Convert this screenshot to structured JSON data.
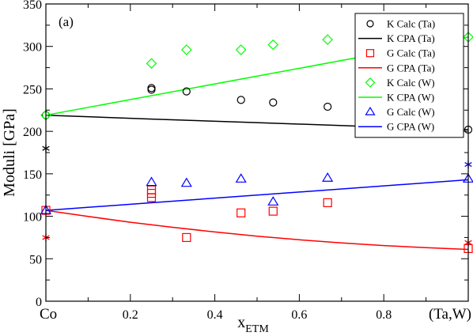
{
  "chart_data": {
    "type": "scatter",
    "panel_label": "(a)",
    "xlabel_main": "x",
    "xlabel_sub": "ETM",
    "ylabel": "Moduli  [GPa]",
    "xlim": [
      0,
      1
    ],
    "ylim": [
      0,
      350
    ],
    "x_ticks": [
      {
        "value": 0,
        "label": "Co"
      },
      {
        "value": 0.2,
        "label": "0.2"
      },
      {
        "value": 0.4,
        "label": "0.4"
      },
      {
        "value": 0.6,
        "label": "0.6"
      },
      {
        "value": 0.8,
        "label": "0.8"
      },
      {
        "value": 1.0,
        "label": "(Ta,W)"
      }
    ],
    "y_ticks": [
      0,
      50,
      100,
      150,
      200,
      250,
      300,
      350
    ],
    "legend_position": "top-right",
    "series": [
      {
        "name": "K Calc (Ta)",
        "kind": "marker",
        "marker": "circle",
        "color": "#000000",
        "points": [
          [
            0,
            219
          ],
          [
            0.25,
            249
          ],
          [
            0.25,
            251
          ],
          [
            0.333,
            247
          ],
          [
            0.462,
            237
          ],
          [
            0.538,
            234
          ],
          [
            0.667,
            229
          ],
          [
            1.0,
            202
          ]
        ]
      },
      {
        "name": "K CPA (Ta)",
        "kind": "line",
        "color": "#000000",
        "points": [
          [
            0,
            219
          ],
          [
            0.25,
            214.5
          ],
          [
            0.5,
            210.3
          ],
          [
            0.75,
            206
          ],
          [
            1.0,
            202
          ]
        ]
      },
      {
        "name": "G Calc (Ta)",
        "kind": "marker",
        "marker": "square",
        "color": "#ff0000",
        "points": [
          [
            0,
            107
          ],
          [
            0.25,
            122
          ],
          [
            0.25,
            127
          ],
          [
            0.25,
            131
          ],
          [
            0.333,
            75
          ],
          [
            0.462,
            104
          ],
          [
            0.538,
            106
          ],
          [
            0.667,
            116
          ],
          [
            1.0,
            62
          ]
        ]
      },
      {
        "name": "G CPA (Ta)",
        "kind": "line",
        "color": "#ff0000",
        "points": [
          [
            0,
            107
          ],
          [
            0.1,
            99.8
          ],
          [
            0.2,
            93
          ],
          [
            0.3,
            87
          ],
          [
            0.4,
            81.5
          ],
          [
            0.5,
            76.6
          ],
          [
            0.6,
            72.3
          ],
          [
            0.7,
            68.6
          ],
          [
            0.8,
            65.5
          ],
          [
            0.9,
            63
          ],
          [
            1.0,
            61
          ]
        ]
      },
      {
        "name": "K Calc (W)",
        "kind": "marker",
        "marker": "diamond",
        "color": "#00ff00",
        "points": [
          [
            0,
            219
          ],
          [
            0.25,
            280
          ],
          [
            0.333,
            296
          ],
          [
            0.462,
            296
          ],
          [
            0.538,
            302
          ],
          [
            0.667,
            308
          ],
          [
            1.0,
            311
          ]
        ]
      },
      {
        "name": "K CPA (W)",
        "kind": "line",
        "color": "#00ff00",
        "points": [
          [
            0,
            219
          ],
          [
            1.0,
            311
          ]
        ]
      },
      {
        "name": "G Calc (W)",
        "kind": "marker",
        "marker": "triangle",
        "color": "#0000ff",
        "points": [
          [
            0,
            107
          ],
          [
            0.25,
            140
          ],
          [
            0.333,
            139
          ],
          [
            0.462,
            144
          ],
          [
            0.538,
            117
          ],
          [
            0.667,
            145
          ],
          [
            1.0,
            144
          ]
        ]
      },
      {
        "name": "G CPA (W)",
        "kind": "line",
        "color": "#0000ff",
        "points": [
          [
            0,
            107
          ],
          [
            1.0,
            143
          ]
        ]
      }
    ],
    "star_markers": [
      {
        "x": 0,
        "y": 180,
        "color": "#000000"
      },
      {
        "x": 0,
        "y": 75,
        "color": "#ff0000"
      },
      {
        "x": 1.0,
        "y": 161,
        "color": "#0000ff"
      },
      {
        "x": 1.0,
        "y": 69,
        "color": "#ff0000"
      }
    ]
  }
}
